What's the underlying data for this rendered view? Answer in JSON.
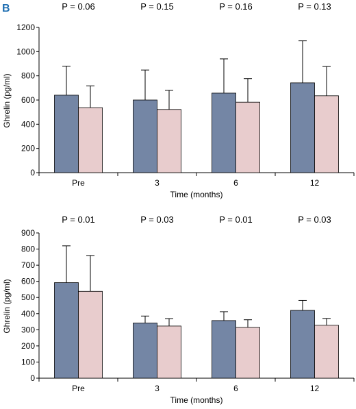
{
  "panel_letter": "B",
  "colors": {
    "series1": "#7486a5",
    "series2": "#e8cccd",
    "letter": "#1f6fb2"
  },
  "chart_data": [
    {
      "type": "bar",
      "categories": [
        "Pre",
        "3",
        "6",
        "12"
      ],
      "series": [
        {
          "values": [
            640,
            600,
            657,
            742
          ],
          "error": [
            240,
            248,
            283,
            347
          ]
        },
        {
          "values": [
            537,
            522,
            582,
            635
          ],
          "error": [
            180,
            158,
            195,
            242
          ]
        }
      ],
      "p_values": [
        "P = 0.06",
        "P = 0.15",
        "P = 0.16",
        "P = 0.13"
      ],
      "ylabel": "Ghrelin (pg/ml)",
      "xlabel": "Time (months)",
      "ylim": [
        0,
        1200
      ],
      "yticks": [
        0,
        200,
        400,
        600,
        800,
        1000,
        1200
      ],
      "grid": false
    },
    {
      "type": "bar",
      "categories": [
        "Pre",
        "3",
        "6",
        "12"
      ],
      "series": [
        {
          "values": [
            592,
            342,
            357,
            420
          ],
          "error": [
            228,
            43,
            55,
            62
          ]
        },
        {
          "values": [
            538,
            323,
            315,
            328
          ],
          "error": [
            222,
            46,
            47,
            42
          ]
        }
      ],
      "p_values": [
        "P = 0.01",
        "P = 0.03",
        "P = 0.01",
        "P = 0.03"
      ],
      "ylabel": "Ghrelin (pg/ml)",
      "xlabel": "Time (months)",
      "ylim": [
        0,
        900
      ],
      "yticks": [
        0,
        100,
        200,
        300,
        400,
        500,
        600,
        700,
        800,
        900
      ],
      "grid": false
    }
  ]
}
